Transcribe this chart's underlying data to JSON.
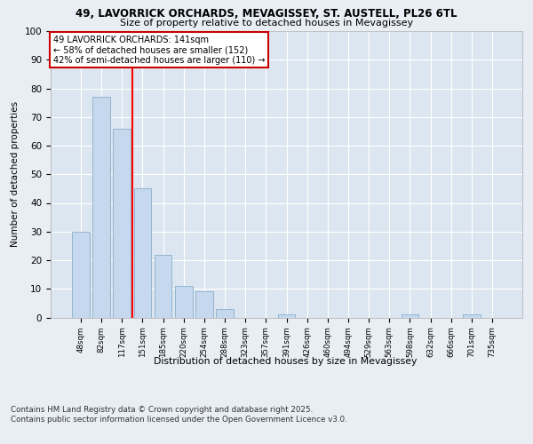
{
  "title_line1": "49, LAVORRICK ORCHARDS, MEVAGISSEY, ST. AUSTELL, PL26 6TL",
  "title_line2": "Size of property relative to detached houses in Mevagissey",
  "xlabel": "Distribution of detached houses by size in Mevagissey",
  "ylabel": "Number of detached properties",
  "categories": [
    "48sqm",
    "82sqm",
    "117sqm",
    "151sqm",
    "185sqm",
    "220sqm",
    "254sqm",
    "288sqm",
    "323sqm",
    "357sqm",
    "391sqm",
    "426sqm",
    "460sqm",
    "494sqm",
    "529sqm",
    "563sqm",
    "598sqm",
    "632sqm",
    "666sqm",
    "701sqm",
    "735sqm"
  ],
  "values": [
    30,
    77,
    66,
    45,
    22,
    11,
    9,
    3,
    0,
    0,
    1,
    0,
    0,
    0,
    0,
    0,
    1,
    0,
    0,
    1,
    0
  ],
  "bar_color": "#c5d8ed",
  "bar_edge_color": "#8aafc8",
  "red_line_x": 2.5,
  "annotation_text": "49 LAVORRICK ORCHARDS: 141sqm\n← 58% of detached houses are smaller (152)\n42% of semi-detached houses are larger (110) →",
  "ylim": [
    0,
    100
  ],
  "background_color": "#e8eef4",
  "plot_bg_color": "#dce6f0",
  "footer_text": "Contains HM Land Registry data © Crown copyright and database right 2025.\nContains public sector information licensed under the Open Government Licence v3.0.",
  "grid_color": "#ffffff",
  "annotation_box_color": "#ffffff",
  "annotation_box_edge": "#cc0000",
  "yticks": [
    0,
    10,
    20,
    30,
    40,
    50,
    60,
    70,
    80,
    90,
    100
  ]
}
